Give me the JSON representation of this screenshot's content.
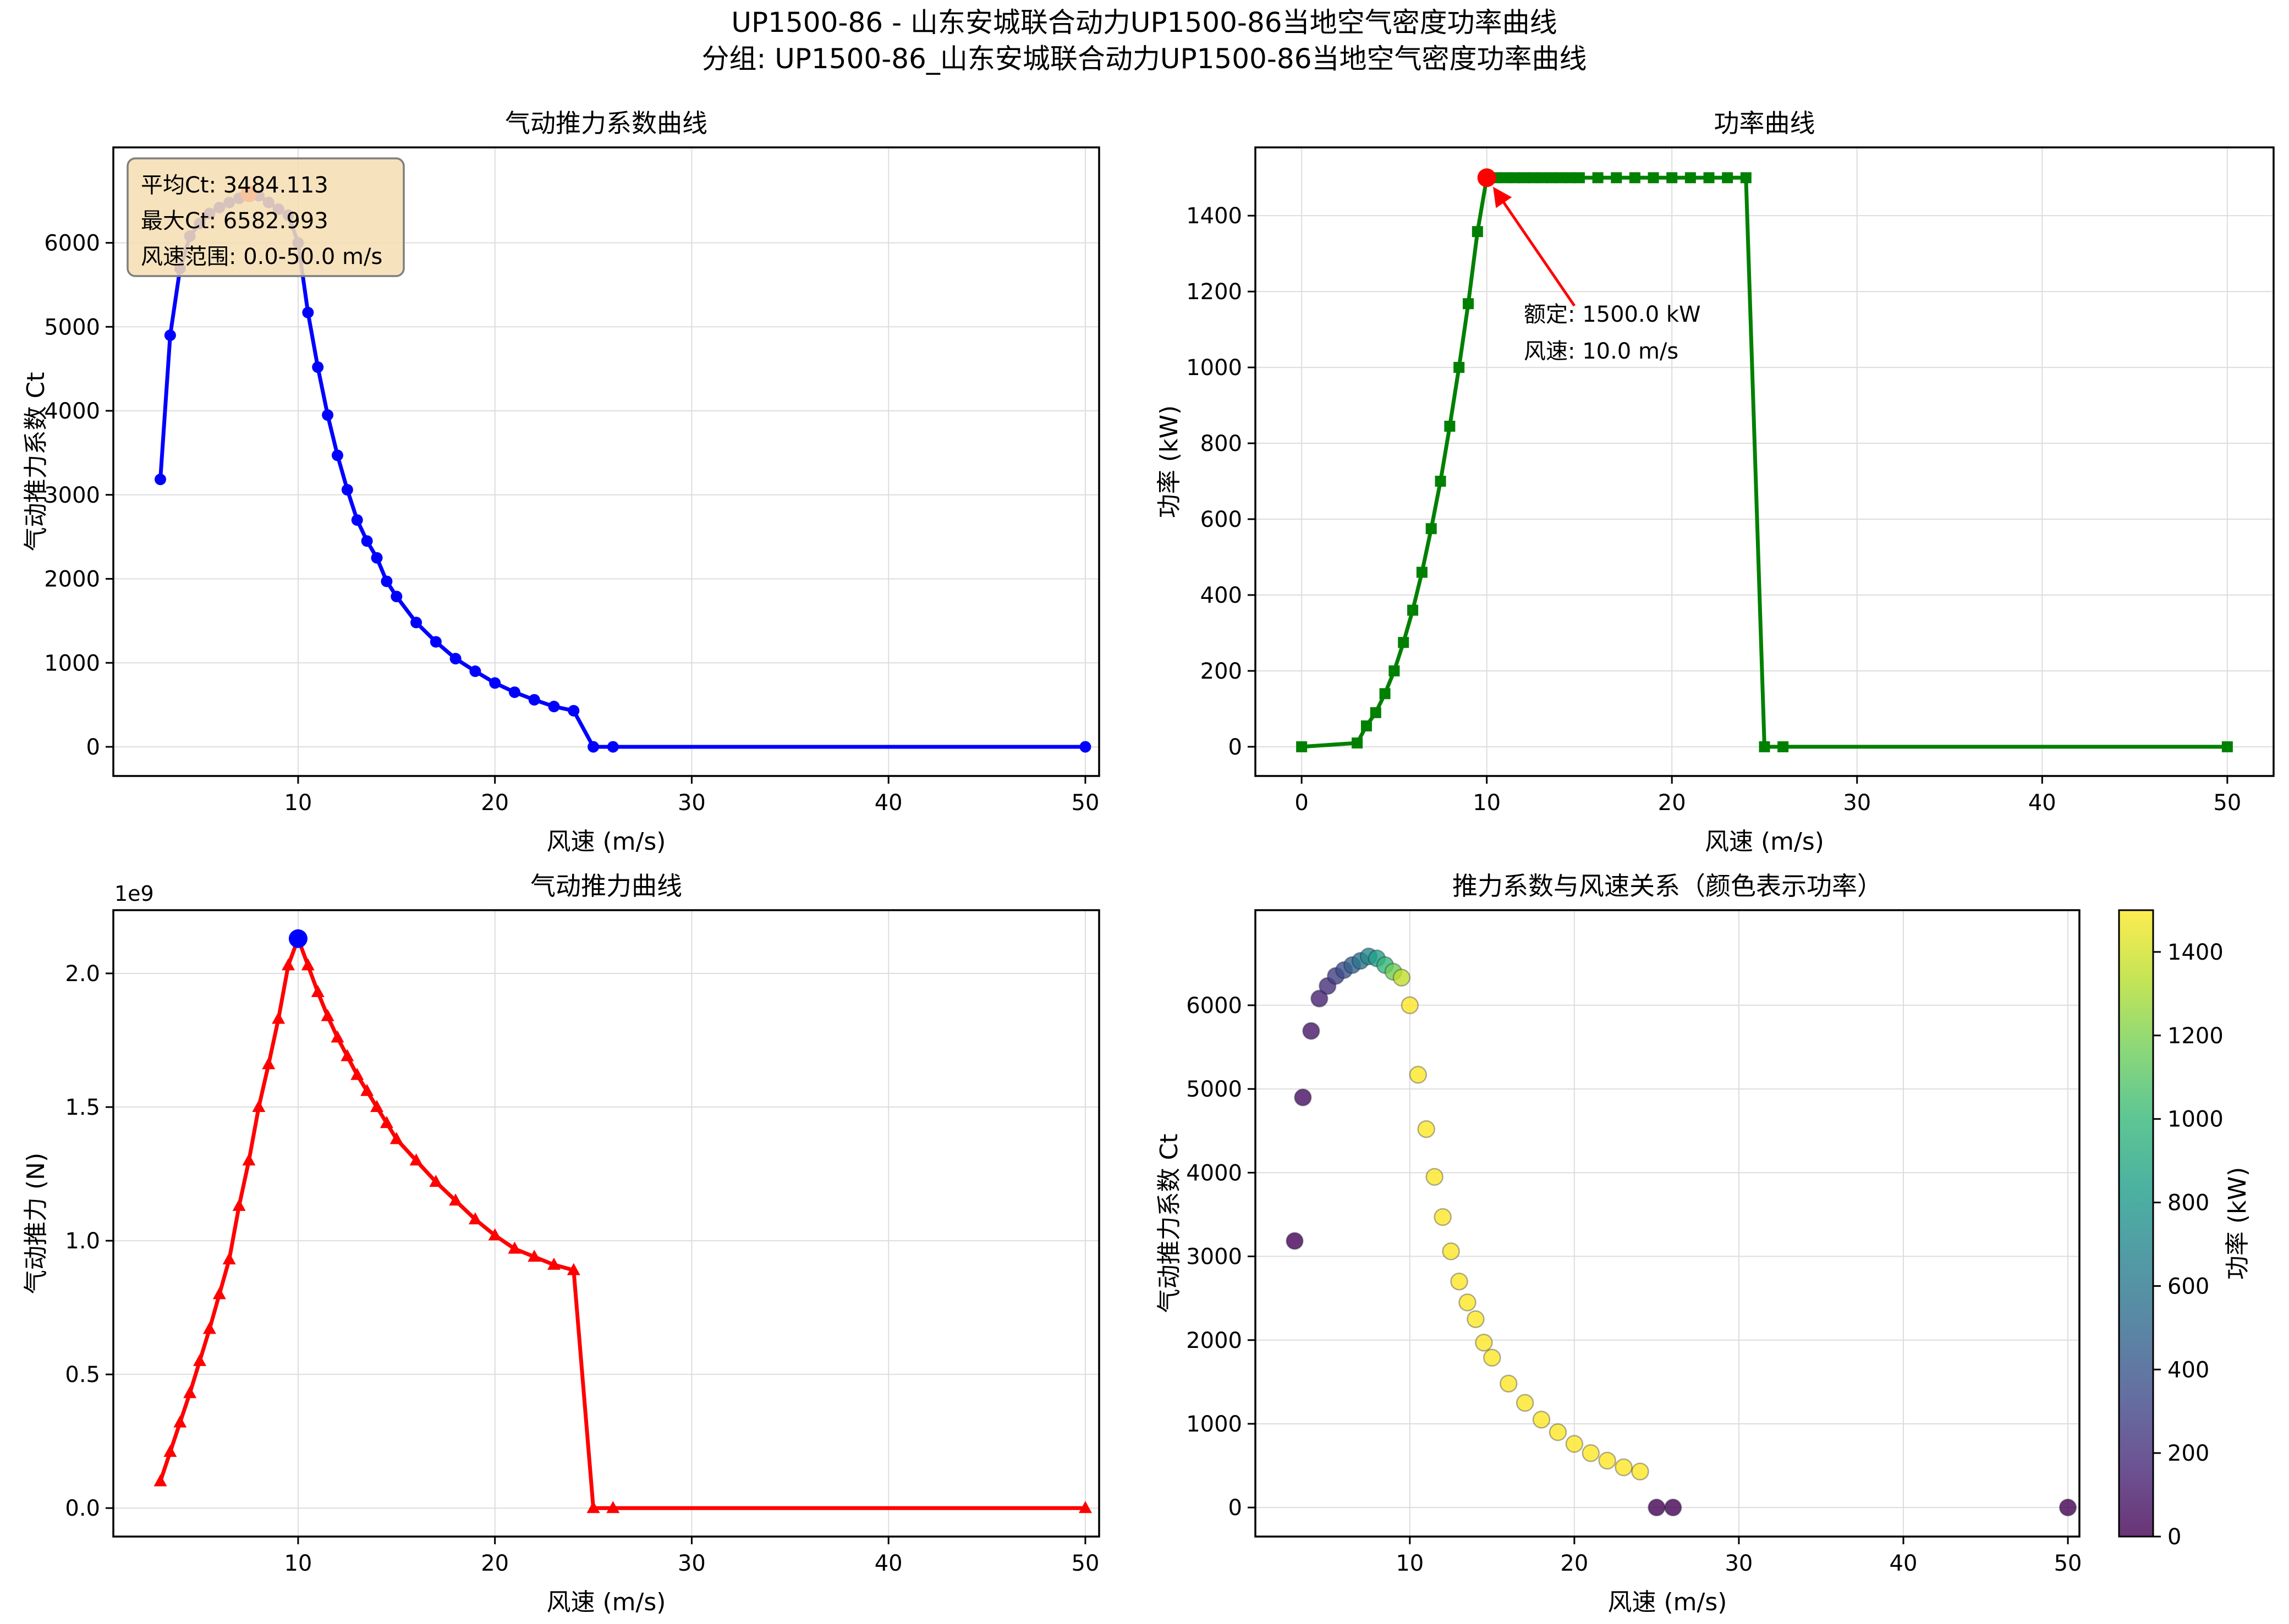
{
  "suptitle": {
    "line1": "UP1500-86 - 山东安城联合动力UP1500-86当地空气密度功率曲线",
    "line2": "分组: UP1500-86_山东安城联合动力UP1500-86当地空气密度功率曲线"
  },
  "chart_data": [
    {
      "id": "ct_curve",
      "type": "line",
      "title": "气动推力系数曲线",
      "xlabel": "风速 (m/s)",
      "ylabel": "气动推力系数 Ct",
      "color": "#0000ff",
      "marker": "circle",
      "x": [
        3,
        3.5,
        4,
        4.5,
        5,
        5.5,
        6,
        6.5,
        7,
        7.5,
        8,
        8.5,
        9,
        9.5,
        10,
        10.5,
        11,
        11.5,
        12,
        12.5,
        13,
        13.5,
        14,
        14.5,
        15,
        16,
        17,
        18,
        19,
        20,
        21,
        22,
        23,
        24,
        25,
        26,
        50
      ],
      "y": [
        3184,
        4899,
        5693,
        6080,
        6230,
        6350,
        6420,
        6480,
        6530,
        6583,
        6560,
        6480,
        6400,
        6330,
        6000,
        5170,
        4520,
        3950,
        3470,
        3060,
        2700,
        2450,
        2250,
        1970,
        1790,
        1480,
        1250,
        1050,
        900,
        760,
        650,
        560,
        480,
        430,
        0,
        0,
        0
      ],
      "xlim": [
        0.61,
        50.7
      ],
      "ylim": [
        -347,
        7136
      ],
      "xticks": [
        10,
        20,
        30,
        40,
        50
      ],
      "xtick_labels": [
        "10",
        "20",
        "30",
        "40",
        "50"
      ],
      "yticks": [
        0,
        1000,
        2000,
        3000,
        4000,
        5000,
        6000
      ],
      "ytick_labels": [
        "0",
        "1000",
        "2000",
        "3000",
        "4000",
        "5000",
        "6000"
      ],
      "max_point": {
        "x": 7.5,
        "y": 6583,
        "color": "#ff0000"
      },
      "annotation_box": {
        "lines": [
          "平均Ct: 3484.113",
          "最大Ct: 6582.993",
          "风速范围: 0.0-50.0 m/s"
        ],
        "bg": "#f5deb3",
        "border": "#7f7f7f"
      }
    },
    {
      "id": "power_curve",
      "type": "line",
      "title": "功率曲线",
      "xlabel": "风速 (m/s)",
      "ylabel": "功率 (kW)",
      "color": "#008000",
      "marker": "square",
      "x": [
        0,
        3,
        3.5,
        4,
        4.5,
        5,
        5.5,
        6,
        6.5,
        7,
        7.5,
        8,
        8.5,
        9,
        9.5,
        10,
        10.5,
        11,
        11.5,
        12,
        12.5,
        13,
        13.5,
        14,
        14.5,
        15,
        16,
        17,
        18,
        19,
        20,
        21,
        22,
        23,
        24,
        25,
        26,
        50
      ],
      "y": [
        0,
        10,
        55,
        90,
        140,
        200,
        275,
        360,
        460,
        575,
        700,
        845,
        1000,
        1168,
        1358,
        1500,
        1500,
        1500,
        1500,
        1500,
        1500,
        1500,
        1500,
        1500,
        1500,
        1500,
        1500,
        1500,
        1500,
        1500,
        1500,
        1500,
        1500,
        1500,
        1500,
        0,
        0,
        0
      ],
      "xlim": [
        -2.5,
        52.5
      ],
      "ylim": [
        -77,
        1580
      ],
      "xticks": [
        0,
        10,
        20,
        30,
        40,
        50
      ],
      "xtick_labels": [
        "0",
        "10",
        "20",
        "30",
        "40",
        "50"
      ],
      "yticks": [
        0,
        200,
        400,
        600,
        800,
        1000,
        1200,
        1400
      ],
      "ytick_labels": [
        "0",
        "200",
        "400",
        "600",
        "800",
        "1000",
        "1200",
        "1400"
      ],
      "rated_point": {
        "x": 10,
        "y": 1500,
        "color": "#ff0000"
      },
      "rated_annotation": {
        "lines": [
          "额定: 1500.0 kW",
          "风速: 10.0 m/s"
        ],
        "color": "#ff0000"
      }
    },
    {
      "id": "thrust_curve",
      "type": "line",
      "title": "气动推力曲线",
      "xlabel": "风速 (m/s)",
      "ylabel": "气动推力 (N)",
      "offset_text": "1e9",
      "color": "#ff0000",
      "marker": "triangle",
      "x": [
        3,
        3.5,
        4,
        4.5,
        5,
        5.5,
        6,
        6.5,
        7,
        7.5,
        8,
        8.5,
        9,
        9.5,
        10,
        10.5,
        11,
        11.5,
        12,
        12.5,
        13,
        13.5,
        14,
        14.5,
        15,
        16,
        17,
        18,
        19,
        20,
        21,
        22,
        23,
        24,
        25,
        26,
        50
      ],
      "y": [
        0.1,
        0.21,
        0.32,
        0.43,
        0.55,
        0.67,
        0.8,
        0.93,
        1.13,
        1.3,
        1.5,
        1.66,
        1.83,
        2.03,
        2.13,
        2.03,
        1.93,
        1.84,
        1.76,
        1.69,
        1.62,
        1.56,
        1.5,
        1.44,
        1.38,
        1.3,
        1.22,
        1.15,
        1.08,
        1.02,
        0.97,
        0.94,
        0.91,
        0.89,
        0,
        0,
        0
      ],
      "xlim": [
        0.61,
        50.7
      ],
      "ylim": [
        -0.1065,
        2.2365
      ],
      "xticks": [
        10,
        20,
        30,
        40,
        50
      ],
      "xtick_labels": [
        "10",
        "20",
        "30",
        "40",
        "50"
      ],
      "yticks": [
        0,
        0.5,
        1.0,
        1.5,
        2.0
      ],
      "ytick_labels": [
        "0.0",
        "0.5",
        "1.0",
        "1.5",
        "2.0"
      ],
      "peak_point": {
        "x": 10,
        "y": 2.13,
        "color": "#0000ff"
      }
    },
    {
      "id": "ct_scatter",
      "type": "scatter",
      "title": "推力系数与风速关系（颜色表示功率）",
      "xlabel": "风速 (m/s)",
      "ylabel": "气动推力系数 Ct",
      "x": [
        3,
        3.5,
        4,
        4.5,
        5,
        5.5,
        6,
        6.5,
        7,
        7.5,
        8,
        8.5,
        9,
        9.5,
        10,
        10.5,
        11,
        11.5,
        12,
        12.5,
        13,
        13.5,
        14,
        14.5,
        15,
        16,
        17,
        18,
        19,
        20,
        21,
        22,
        23,
        24,
        25,
        26,
        50
      ],
      "y": [
        3184,
        4899,
        5693,
        6080,
        6230,
        6350,
        6420,
        6480,
        6530,
        6583,
        6560,
        6480,
        6400,
        6330,
        6000,
        5170,
        4520,
        3950,
        3470,
        3060,
        2700,
        2450,
        2250,
        1970,
        1790,
        1480,
        1250,
        1050,
        900,
        760,
        650,
        560,
        480,
        430,
        0,
        0,
        0
      ],
      "c": [
        10,
        55,
        90,
        140,
        200,
        275,
        360,
        460,
        575,
        700,
        845,
        1000,
        1168,
        1358,
        1500,
        1500,
        1500,
        1500,
        1500,
        1500,
        1500,
        1500,
        1500,
        1500,
        1500,
        1500,
        1500,
        1500,
        1500,
        1500,
        1500,
        1500,
        1500,
        1500,
        0,
        0,
        0
      ],
      "cmap": "viridis",
      "vmin": 0,
      "vmax": 1500,
      "xlim": [
        0.61,
        50.7
      ],
      "ylim": [
        -347,
        7136
      ],
      "xticks": [
        10,
        20,
        30,
        40,
        50
      ],
      "xtick_labels": [
        "10",
        "20",
        "30",
        "40",
        "50"
      ],
      "yticks": [
        0,
        1000,
        2000,
        3000,
        4000,
        5000,
        6000
      ],
      "ytick_labels": [
        "0",
        "1000",
        "2000",
        "3000",
        "4000",
        "5000",
        "6000"
      ]
    }
  ],
  "colorbar": {
    "label": "功率 (kW)",
    "cmap": "viridis",
    "vmin": 0,
    "vmax": 1500,
    "ticks": [
      0,
      200,
      400,
      600,
      800,
      1000,
      1200,
      1400
    ],
    "tick_labels": [
      "0",
      "200",
      "400",
      "600",
      "800",
      "1000",
      "1200",
      "1400"
    ]
  }
}
